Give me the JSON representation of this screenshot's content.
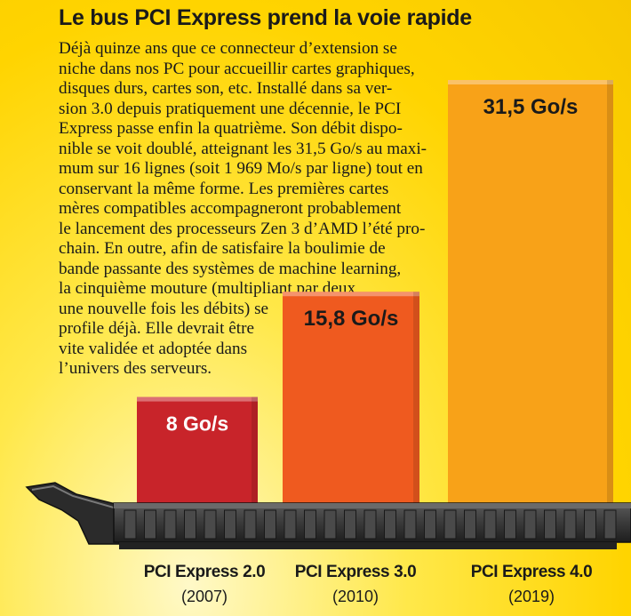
{
  "title": "Le bus PCI Express prend la voie rapide",
  "body_lines": [
    "Déjà quinze ans que ce connecteur d’extension se",
    "niche dans nos PC pour accueillir cartes graphiques,",
    "disques durs, cartes son, etc. Installé dans sa ver-",
    "sion 3.0 depuis pratiquement une décennie, le PCI",
    "Express passe enfin la quatrième. Son débit dispo-",
    "nible se voit doublé, atteignant les 31,5 Go/s au maxi-",
    "mum sur 16 lignes (soit 1 969 Mo/s par ligne) tout en",
    "conservant la même forme. Les premières cartes",
    "mères compatibles accompagneront probablement",
    "le lancement des processeurs Zen 3 d’AMD l’été pro-",
    "chain. En outre, afin de satisfaire la boulimie de",
    "bande passante des systèmes de machine learning,",
    "la cinquième mouture (multipliant par deux",
    "une nouvelle fois les débits) se",
    "profile déjà. Elle devrait être",
    "vite validée et adoptée dans",
    "l’univers des serveurs."
  ],
  "chart_data": {
    "type": "bar",
    "title": "Le bus PCI Express prend la voie rapide",
    "unit": "Go/s",
    "categories": [
      "PCI Express 2.0",
      "PCI Express 3.0",
      "PCI Express 4.0"
    ],
    "years": [
      "(2007)",
      "(2010)",
      "(2019)"
    ],
    "values": [
      8,
      15.8,
      31.5
    ],
    "value_labels": [
      "8 Go/s",
      "15,8 Go/s",
      "31,5 Go/s"
    ],
    "colors": [
      "#c8242a",
      "#ef5a1f",
      "#f8a218"
    ],
    "ylim": [
      0,
      31.5
    ],
    "grid": false,
    "legend": "none"
  }
}
